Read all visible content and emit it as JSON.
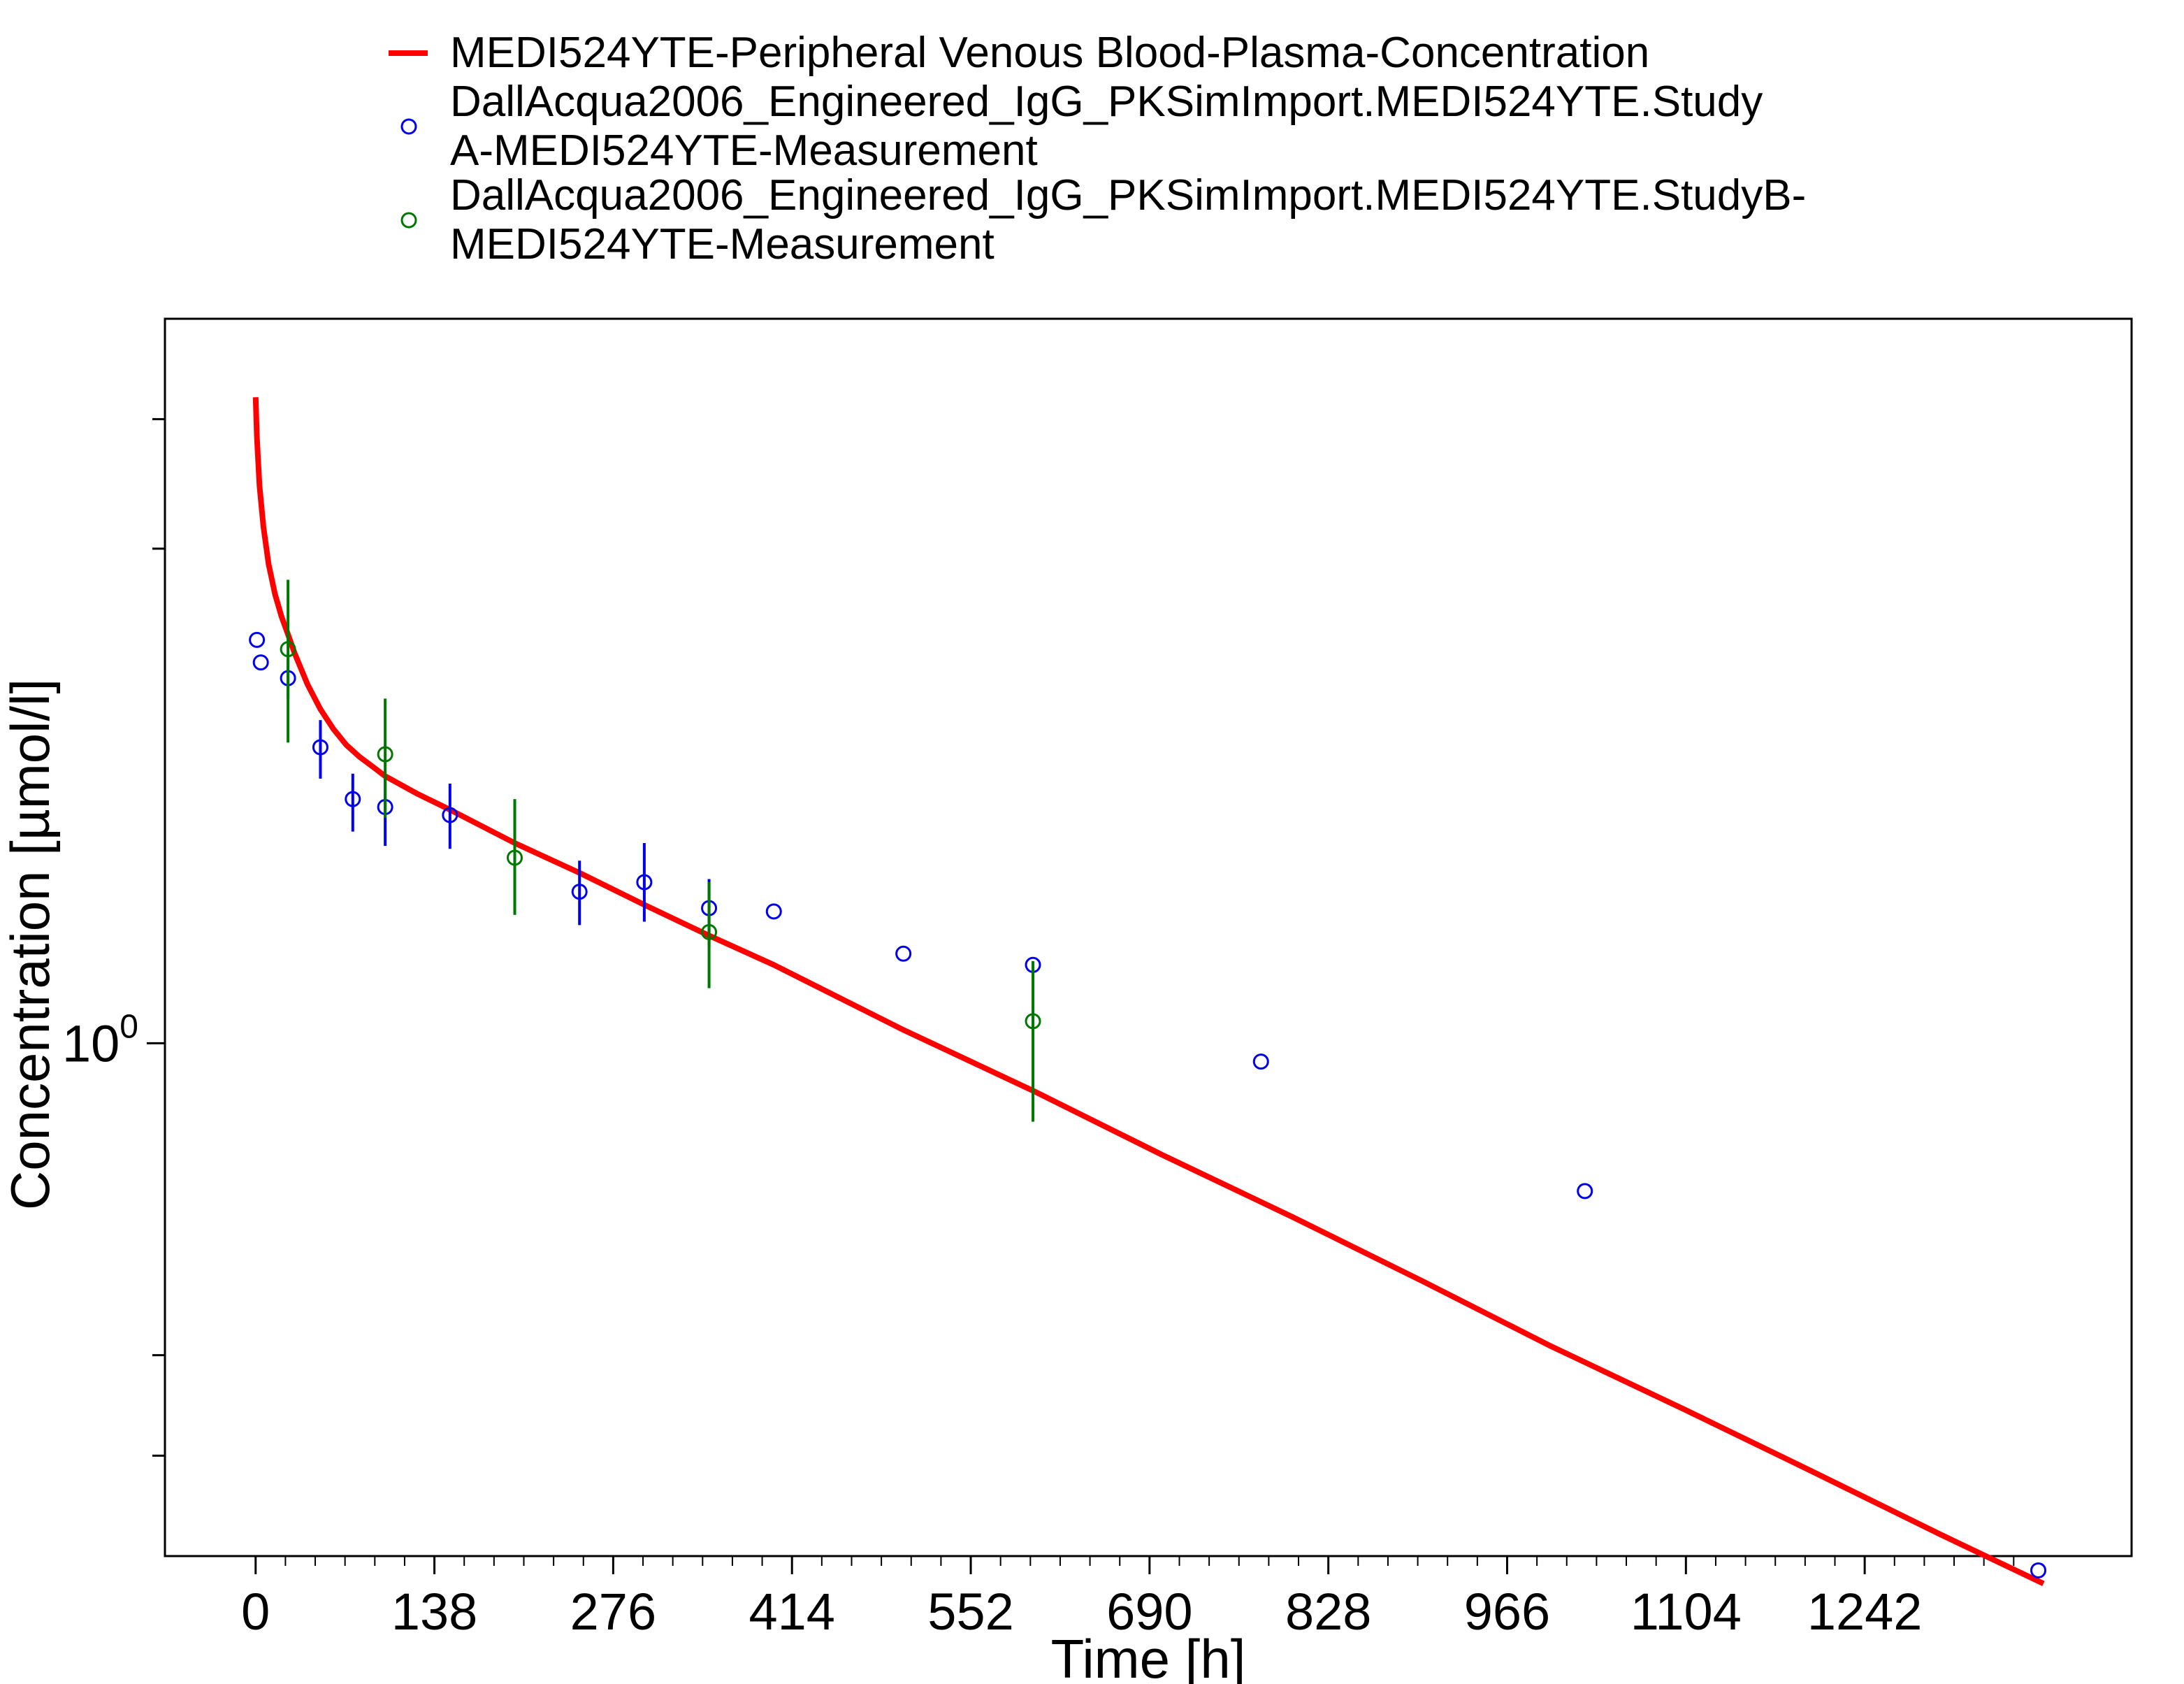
{
  "chart_data": {
    "type": "line",
    "xlabel": "Time [h]",
    "ylabel": "Concentration [µmol/l]",
    "x_scale": "linear",
    "y_scale": "log",
    "xlim": [
      -70,
      1448
    ],
    "ylim": [
      0.32,
      5.0
    ],
    "x_ticks": [
      0,
      138,
      276,
      414,
      552,
      690,
      828,
      966,
      1104,
      1242
    ],
    "y_tick_labels": [
      {
        "value": 1.0,
        "base": "10",
        "exp": "0"
      }
    ],
    "y_minor_ticks": [
      0.4,
      0.5,
      3.0,
      4.0
    ],
    "grid": false,
    "legend_position": "top",
    "series": [
      {
        "name": "MEDI524YTE-Peripheral Venous Blood-Plasma-Concentration",
        "kind": "line",
        "color": "#ff0000",
        "x": [
          0,
          1,
          3,
          6,
          10,
          15,
          20,
          25,
          30,
          40,
          50,
          60,
          70,
          80,
          90,
          100,
          125,
          150,
          200,
          250,
          300,
          350,
          400,
          500,
          600,
          700,
          800,
          900,
          1000,
          1100,
          1200,
          1300,
          1380
        ],
        "y": [
          4.2,
          3.84,
          3.45,
          3.15,
          2.9,
          2.71,
          2.58,
          2.48,
          2.38,
          2.22,
          2.1,
          2.01,
          1.94,
          1.89,
          1.85,
          1.81,
          1.74,
          1.68,
          1.56,
          1.46,
          1.36,
          1.27,
          1.19,
          1.03,
          0.9,
          0.78,
          0.68,
          0.59,
          0.51,
          0.445,
          0.387,
          0.336,
          0.301
        ]
      },
      {
        "name": "DallAcqua2006_Engineered_IgG_PKSimImport.MEDI524YTE.Study A-MEDI524YTE-Measurement",
        "legend_lines": [
          "DallAcqua2006_Engineered_IgG_PKSimImport.MEDI524YTE.Study",
          "A-MEDI524YTE-Measurement"
        ],
        "kind": "scatter",
        "color": "#0000ee",
        "points": [
          {
            "x": 1,
            "y": 2.45
          },
          {
            "x": 4,
            "y": 2.33
          },
          {
            "x": 25,
            "y": 2.25,
            "err": [
              2.15,
              2.35
            ]
          },
          {
            "x": 50,
            "y": 1.93,
            "err": [
              1.8,
              2.05
            ]
          },
          {
            "x": 75,
            "y": 1.72,
            "err": [
              1.6,
              1.82
            ]
          },
          {
            "x": 100,
            "y": 1.69,
            "err": [
              1.55,
              1.8
            ]
          },
          {
            "x": 150,
            "y": 1.66,
            "err": [
              1.54,
              1.78
            ]
          },
          {
            "x": 250,
            "y": 1.4,
            "err": [
              1.3,
              1.5
            ]
          },
          {
            "x": 300,
            "y": 1.43,
            "err": [
              1.31,
              1.56
            ]
          },
          {
            "x": 350,
            "y": 1.35,
            "err": [
              1.24,
              1.44
            ]
          },
          {
            "x": 400,
            "y": 1.34
          },
          {
            "x": 500,
            "y": 1.22
          },
          {
            "x": 600,
            "y": 1.19
          },
          {
            "x": 776,
            "y": 0.96
          },
          {
            "x": 1026,
            "y": 0.72
          },
          {
            "x": 1376,
            "y": 0.31
          }
        ]
      },
      {
        "name": "DallAcqua2006_Engineered_IgG_PKSimImport.MEDI524YTE.StudyB-MEDI524YTE-Measurement",
        "legend_lines": [
          "DallAcqua2006_Engineered_IgG_PKSimImport.MEDI524YTE.StudyB-",
          "MEDI524YTE-Measurement"
        ],
        "kind": "scatter",
        "color": "#007700",
        "points": [
          {
            "x": 25,
            "y": 2.4,
            "err": [
              1.95,
              2.8
            ]
          },
          {
            "x": 100,
            "y": 1.9,
            "err": [
              1.65,
              2.15
            ]
          },
          {
            "x": 200,
            "y": 1.51,
            "err": [
              1.33,
              1.72
            ]
          },
          {
            "x": 350,
            "y": 1.28,
            "err": [
              1.13,
              1.43
            ]
          },
          {
            "x": 600,
            "y": 1.05,
            "err": [
              0.84,
              1.2
            ]
          }
        ]
      }
    ]
  }
}
